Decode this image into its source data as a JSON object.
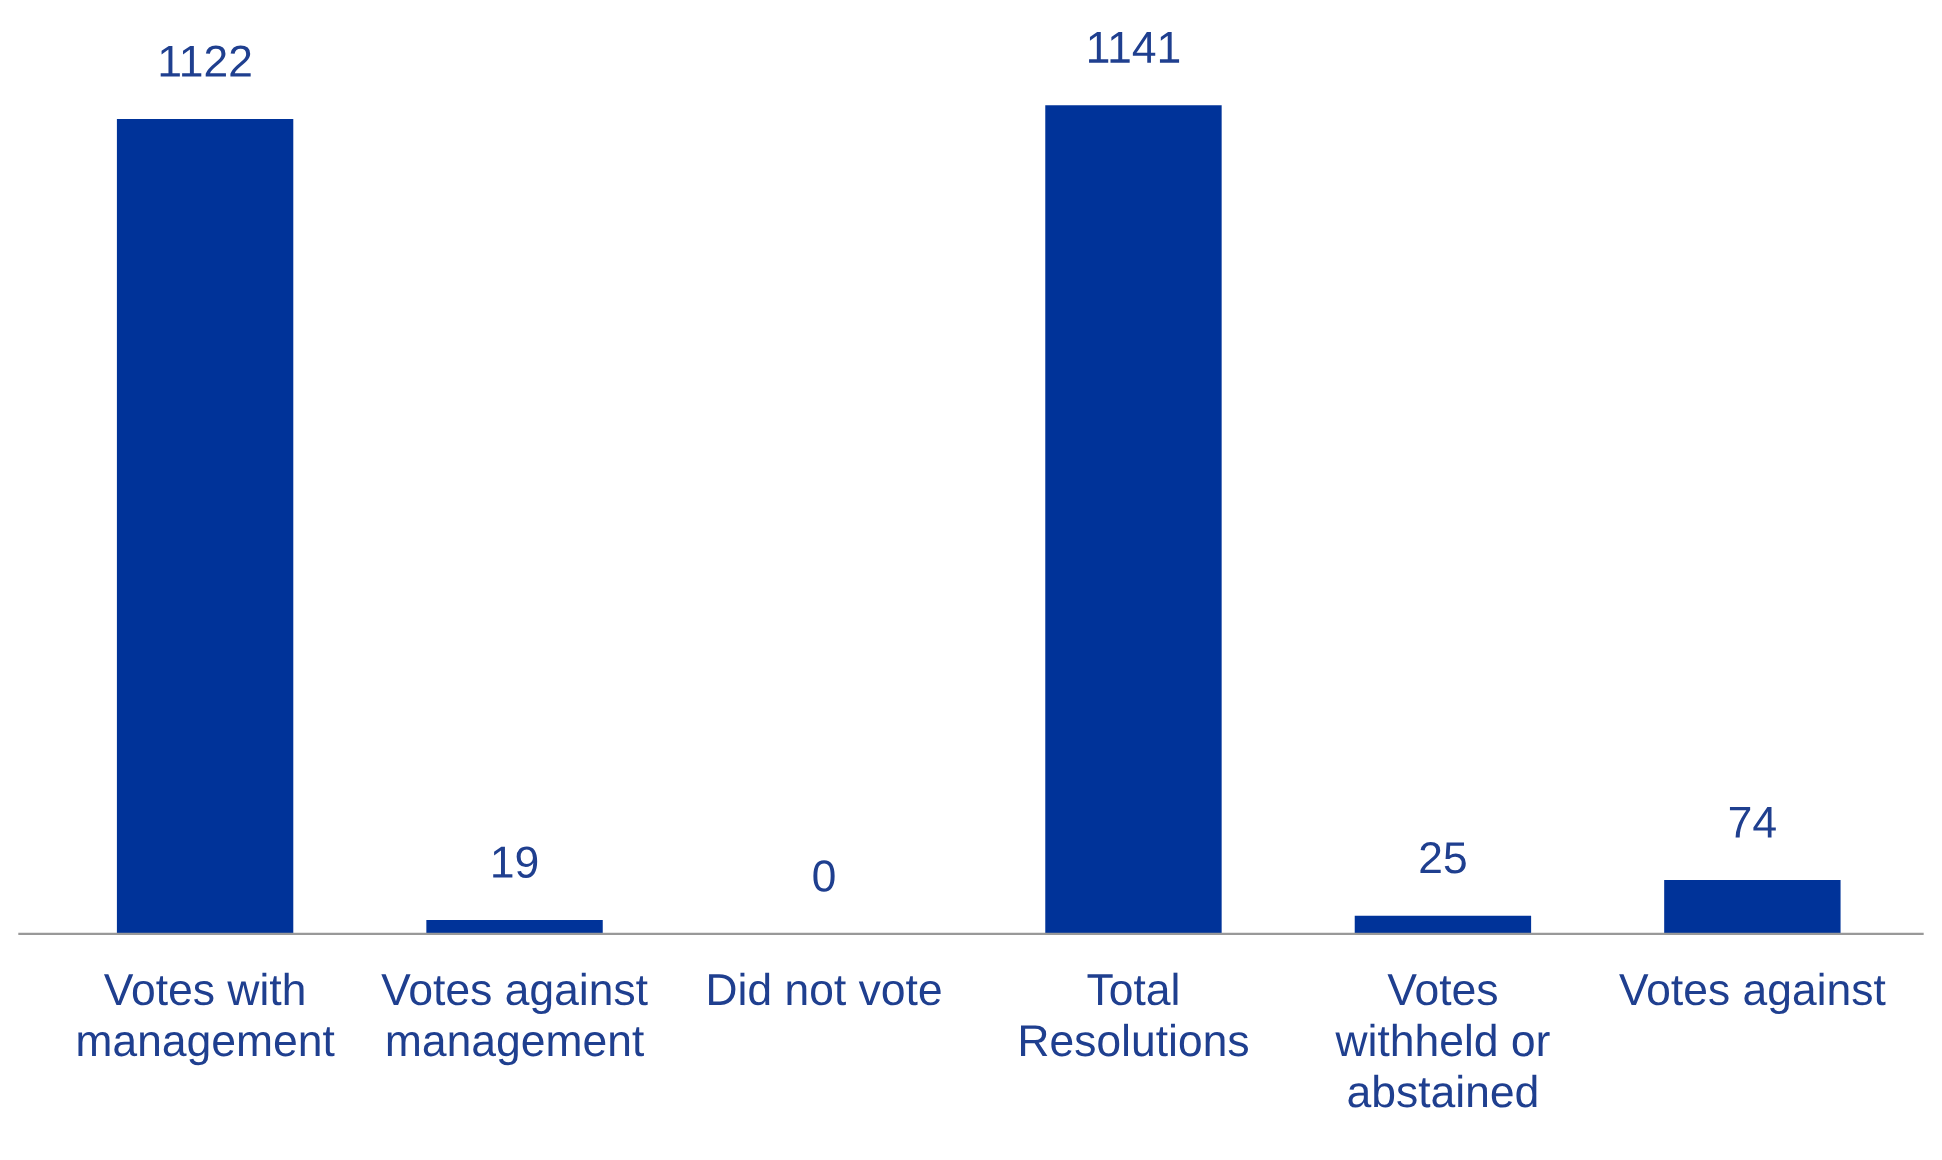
{
  "chart_data": {
    "type": "bar",
    "categories": [
      "Votes with\nmanagement",
      "Votes against\nmanagement",
      "Did not vote",
      "Total\nResolutions",
      "Votes\nwithheld or\nabstained",
      "Votes against"
    ],
    "values": [
      1122,
      19,
      0,
      1141,
      25,
      74
    ],
    "color": "#003399",
    "data_labels": true,
    "grid": false,
    "legend": false
  }
}
